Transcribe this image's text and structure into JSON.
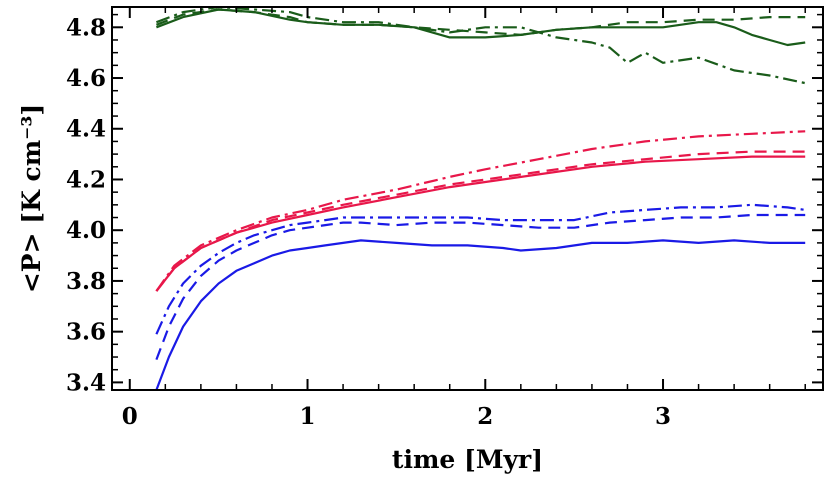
{
  "chart_data": {
    "type": "line",
    "title": "",
    "xlabel": "time [Myr]",
    "ylabel": "<P> [K cm⁻³]",
    "xlim": [
      -0.1,
      3.9
    ],
    "ylim": [
      3.37,
      4.88
    ],
    "xticks": [
      0,
      1,
      2,
      3
    ],
    "yticks": [
      3.4,
      3.6,
      3.8,
      4.0,
      4.2,
      4.4,
      4.6,
      4.8
    ],
    "xtick_labels": [
      "0",
      "1",
      "2",
      "3"
    ],
    "ytick_labels": [
      "3.4",
      "3.6",
      "3.8",
      "4.0",
      "4.2",
      "4.4",
      "4.6",
      "4.8"
    ],
    "grid": false,
    "legend": "none",
    "series": [
      {
        "color": "#1a5c1a",
        "style": "solid",
        "x": [
          0.15,
          0.3,
          0.5,
          0.7,
          0.9,
          1.0,
          1.2,
          1.4,
          1.6,
          1.8,
          2.0,
          2.2,
          2.4,
          2.6,
          2.8,
          3.0,
          3.2,
          3.3,
          3.4,
          3.5,
          3.6,
          3.7,
          3.8
        ],
        "y": [
          4.8,
          4.84,
          4.87,
          4.86,
          4.83,
          4.82,
          4.81,
          4.81,
          4.8,
          4.76,
          4.76,
          4.77,
          4.79,
          4.8,
          4.8,
          4.8,
          4.82,
          4.82,
          4.8,
          4.77,
          4.75,
          4.73,
          4.74
        ]
      },
      {
        "color": "#1a5c1a",
        "style": "dashed",
        "x": [
          0.15,
          0.3,
          0.5,
          0.7,
          0.9,
          1.0,
          1.2,
          1.4,
          1.6,
          1.8,
          2.0,
          2.2,
          2.4,
          2.6,
          2.8,
          3.0,
          3.2,
          3.4,
          3.6,
          3.8
        ],
        "y": [
          4.81,
          4.85,
          4.87,
          4.86,
          4.84,
          4.82,
          4.81,
          4.81,
          4.8,
          4.79,
          4.78,
          4.77,
          4.79,
          4.8,
          4.82,
          4.82,
          4.83,
          4.83,
          4.84,
          4.84
        ]
      },
      {
        "color": "#1a5c1a",
        "style": "dashdot",
        "x": [
          0.15,
          0.3,
          0.5,
          0.7,
          0.9,
          1.0,
          1.2,
          1.4,
          1.6,
          1.8,
          2.0,
          2.2,
          2.4,
          2.6,
          2.7,
          2.8,
          2.9,
          3.0,
          3.2,
          3.4,
          3.6,
          3.8
        ],
        "y": [
          4.82,
          4.86,
          4.88,
          4.87,
          4.86,
          4.84,
          4.82,
          4.82,
          4.8,
          4.78,
          4.8,
          4.8,
          4.76,
          4.74,
          4.72,
          4.66,
          4.7,
          4.66,
          4.68,
          4.63,
          4.61,
          4.58
        ]
      },
      {
        "color": "#e8174a",
        "style": "solid",
        "x": [
          0.15,
          0.25,
          0.4,
          0.6,
          0.8,
          1.0,
          1.2,
          1.5,
          1.8,
          2.0,
          2.3,
          2.6,
          2.9,
          3.2,
          3.5,
          3.8
        ],
        "y": [
          3.76,
          3.85,
          3.93,
          3.99,
          4.03,
          4.06,
          4.09,
          4.13,
          4.17,
          4.19,
          4.22,
          4.25,
          4.27,
          4.28,
          4.29,
          4.29
        ]
      },
      {
        "color": "#e8174a",
        "style": "dashed",
        "x": [
          0.15,
          0.25,
          0.4,
          0.6,
          0.8,
          1.0,
          1.2,
          1.5,
          1.8,
          2.0,
          2.3,
          2.6,
          2.9,
          3.2,
          3.5,
          3.8
        ],
        "y": [
          3.76,
          3.85,
          3.93,
          3.99,
          4.04,
          4.07,
          4.1,
          4.14,
          4.18,
          4.2,
          4.23,
          4.26,
          4.28,
          4.3,
          4.31,
          4.31
        ]
      },
      {
        "color": "#e8174a",
        "style": "dashdot",
        "x": [
          0.15,
          0.25,
          0.4,
          0.6,
          0.8,
          1.0,
          1.2,
          1.5,
          1.8,
          2.0,
          2.3,
          2.6,
          2.9,
          3.2,
          3.5,
          3.8
        ],
        "y": [
          3.76,
          3.86,
          3.94,
          4.0,
          4.05,
          4.08,
          4.12,
          4.16,
          4.21,
          4.24,
          4.28,
          4.32,
          4.35,
          4.37,
          4.38,
          4.39
        ]
      },
      {
        "color": "#1a1ae6",
        "style": "solid",
        "x": [
          0.15,
          0.22,
          0.3,
          0.4,
          0.5,
          0.6,
          0.7,
          0.8,
          0.9,
          1.0,
          1.1,
          1.2,
          1.3,
          1.5,
          1.7,
          1.9,
          2.1,
          2.2,
          2.4,
          2.6,
          2.8,
          3.0,
          3.2,
          3.4,
          3.6,
          3.8
        ],
        "y": [
          3.37,
          3.5,
          3.62,
          3.72,
          3.79,
          3.84,
          3.87,
          3.9,
          3.92,
          3.93,
          3.94,
          3.95,
          3.96,
          3.95,
          3.94,
          3.94,
          3.93,
          3.92,
          3.93,
          3.95,
          3.95,
          3.96,
          3.95,
          3.96,
          3.95,
          3.95
        ]
      },
      {
        "color": "#1a1ae6",
        "style": "dashed",
        "x": [
          0.15,
          0.22,
          0.3,
          0.4,
          0.5,
          0.6,
          0.7,
          0.8,
          0.9,
          1.0,
          1.1,
          1.2,
          1.3,
          1.5,
          1.7,
          1.9,
          2.1,
          2.3,
          2.5,
          2.7,
          2.9,
          3.1,
          3.3,
          3.5,
          3.7,
          3.8
        ],
        "y": [
          3.49,
          3.62,
          3.73,
          3.82,
          3.88,
          3.92,
          3.95,
          3.98,
          4.0,
          4.01,
          4.02,
          4.03,
          4.03,
          4.02,
          4.03,
          4.03,
          4.02,
          4.01,
          4.01,
          4.03,
          4.04,
          4.05,
          4.05,
          4.06,
          4.06,
          4.06
        ]
      },
      {
        "color": "#1a1ae6",
        "style": "dashdot",
        "x": [
          0.15,
          0.22,
          0.3,
          0.4,
          0.5,
          0.6,
          0.7,
          0.8,
          0.9,
          1.0,
          1.1,
          1.2,
          1.3,
          1.5,
          1.7,
          1.9,
          2.1,
          2.3,
          2.5,
          2.7,
          2.9,
          3.1,
          3.3,
          3.5,
          3.7,
          3.8
        ],
        "y": [
          3.59,
          3.7,
          3.79,
          3.86,
          3.91,
          3.95,
          3.98,
          4.0,
          4.02,
          4.03,
          4.04,
          4.05,
          4.05,
          4.05,
          4.05,
          4.05,
          4.04,
          4.04,
          4.04,
          4.07,
          4.08,
          4.09,
          4.09,
          4.1,
          4.09,
          4.08
        ]
      }
    ]
  }
}
